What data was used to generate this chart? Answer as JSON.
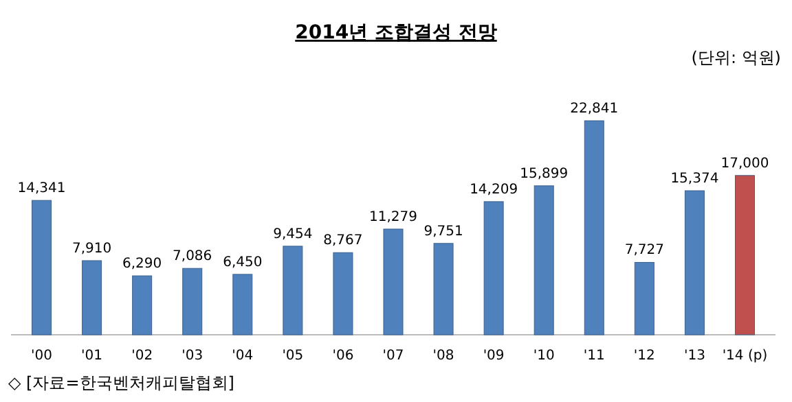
{
  "chart_data": {
    "type": "bar",
    "title": "2014년 조합결성 전망",
    "subtitle": "(단위: 억원)",
    "annotations": [
      "◇ [자료=한국벤처캐피탈협회]"
    ],
    "categories": [
      "'00",
      "'01",
      "'02",
      "'03",
      "'04",
      "'05",
      "'06",
      "'07",
      "'08",
      "'09",
      "'10",
      "'11",
      "'12",
      "'13",
      "'14 (p)"
    ],
    "values": [
      14341,
      7910,
      6290,
      7086,
      6450,
      9454,
      8767,
      11279,
      9751,
      14209,
      15899,
      22841,
      7727,
      15374,
      17000
    ],
    "value_labels": [
      "14,341",
      "7,910",
      "6,290",
      "7,086",
      "6,450",
      "9,454",
      "8,767",
      "11,279",
      "9,751",
      "14,209",
      "15,899",
      "22,841",
      "7,727",
      "15,374",
      "17,000"
    ],
    "colors": [
      "#4f81bd",
      "#4f81bd",
      "#4f81bd",
      "#4f81bd",
      "#4f81bd",
      "#4f81bd",
      "#4f81bd",
      "#4f81bd",
      "#4f81bd",
      "#4f81bd",
      "#4f81bd",
      "#4f81bd",
      "#4f81bd",
      "#4f81bd",
      "#c0504d"
    ]
  }
}
